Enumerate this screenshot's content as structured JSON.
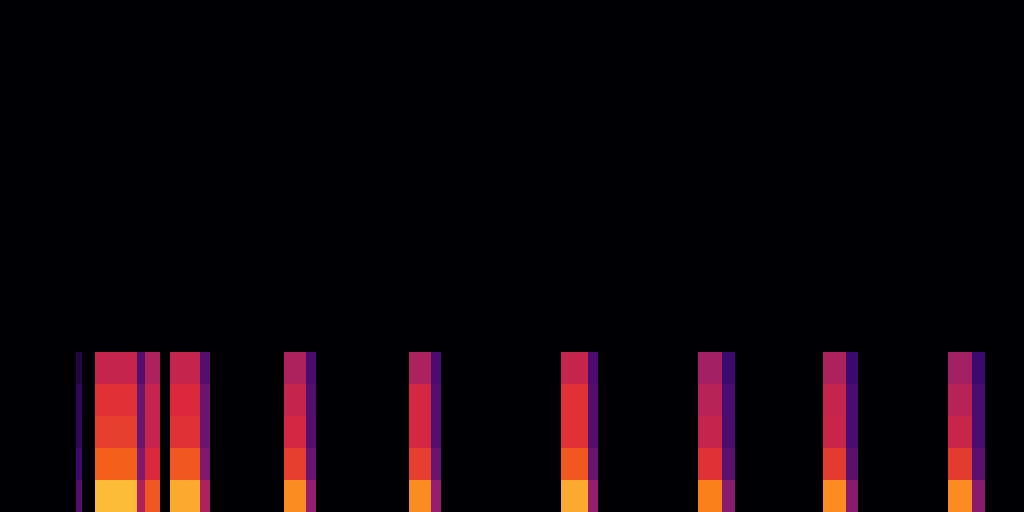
{
  "chart_data": {
    "type": "heatmap",
    "xlim": [
      0,
      1024
    ],
    "ylim": [
      0,
      512
    ],
    "tick_labels": false,
    "grid": false,
    "color_range": [
      0,
      1
    ],
    "x_edges": [
      0,
      76,
      82,
      95,
      137,
      145,
      160,
      170,
      200,
      210,
      284,
      306,
      316,
      409,
      431,
      441,
      561,
      588,
      598,
      698,
      722,
      735,
      823,
      846,
      858,
      948,
      972,
      985,
      1024
    ],
    "y_edges": [
      0,
      32,
      64,
      96,
      128,
      160,
      512
    ],
    "cells": [
      [
        0,
        0,
        0,
        0,
        0,
        0
      ],
      [
        0.3,
        0.25,
        0.2,
        0.2,
        0.15,
        0
      ],
      [
        0,
        0,
        0,
        0,
        0,
        0
      ],
      [
        0.88,
        0.72,
        0.65,
        0.62,
        0.55,
        0
      ],
      [
        0.5,
        0.4,
        0.35,
        0.35,
        0.3,
        0
      ],
      [
        0.7,
        0.6,
        0.55,
        0.55,
        0.5,
        0
      ],
      [
        0,
        0,
        0,
        0,
        0,
        0
      ],
      [
        0.85,
        0.7,
        0.62,
        0.6,
        0.55,
        0
      ],
      [
        0.5,
        0.4,
        0.35,
        0.35,
        0.3,
        0
      ],
      [
        0,
        0,
        0,
        0,
        0,
        0
      ],
      [
        0.8,
        0.65,
        0.58,
        0.55,
        0.5,
        0
      ],
      [
        0.45,
        0.35,
        0.3,
        0.3,
        0.28,
        0
      ],
      [
        0,
        0,
        0,
        0,
        0,
        0
      ],
      [
        0.8,
        0.65,
        0.58,
        0.58,
        0.5,
        0
      ],
      [
        0.45,
        0.35,
        0.3,
        0.3,
        0.28,
        0
      ],
      [
        0,
        0,
        0,
        0,
        0,
        0
      ],
      [
        0.85,
        0.7,
        0.62,
        0.62,
        0.55,
        0
      ],
      [
        0.45,
        0.35,
        0.3,
        0.3,
        0.28,
        0
      ],
      [
        0,
        0,
        0,
        0,
        0,
        0
      ],
      [
        0.78,
        0.62,
        0.55,
        0.52,
        0.48,
        0
      ],
      [
        0.42,
        0.32,
        0.28,
        0.28,
        0.25,
        0
      ],
      [
        0,
        0,
        0,
        0,
        0,
        0
      ],
      [
        0.8,
        0.64,
        0.56,
        0.55,
        0.5,
        0
      ],
      [
        0.42,
        0.32,
        0.28,
        0.28,
        0.25,
        0
      ],
      [
        0,
        0,
        0,
        0,
        0,
        0
      ],
      [
        0.8,
        0.64,
        0.56,
        0.52,
        0.48,
        0
      ],
      [
        0.42,
        0.32,
        0.28,
        0.28,
        0.25,
        0
      ],
      [
        0,
        0,
        0,
        0,
        0,
        0
      ]
    ]
  }
}
